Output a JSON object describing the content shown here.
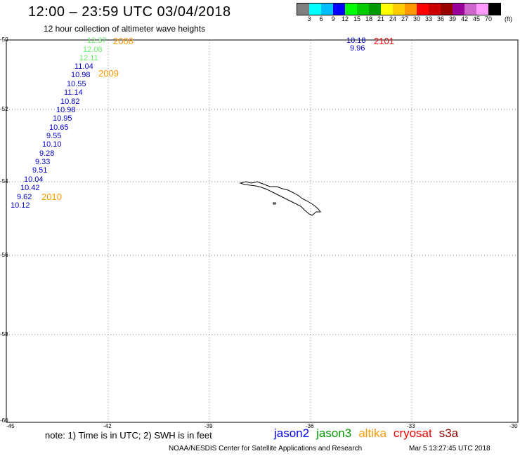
{
  "title": "12:00 – 23:59 UTC 03/04/2018",
  "subtitle": "12 hour collection of altimeter wave heights",
  "legend": {
    "colors": [
      "#808080",
      "#00ffff",
      "#00bfff",
      "#0000ff",
      "#00ff00",
      "#00cc00",
      "#009900",
      "#ffff00",
      "#ffcc00",
      "#ff9900",
      "#ff0000",
      "#cc0000",
      "#990000",
      "#990099",
      "#cc66cc",
      "#ff99ff",
      "#000000"
    ],
    "labels": [
      "3",
      "6",
      "9",
      "12",
      "15",
      "18",
      "21",
      "24",
      "27",
      "30",
      "33",
      "36",
      "39",
      "42",
      "45",
      "70"
    ],
    "unit": "(ft)"
  },
  "axes": {
    "lat_ticks": [
      "-50",
      "-52",
      "-54",
      "-56",
      "-58",
      "-60"
    ],
    "lon_ticks": [
      "-45",
      "-42",
      "-39",
      "-36",
      "-33",
      "-30"
    ]
  },
  "tracks": [
    {
      "time_label": "2008",
      "satellite": "altika",
      "values": [
        {
          "text": "12.37",
          "color": "#66ee66"
        },
        {
          "text": "12.08",
          "color": "#66ee66"
        },
        {
          "text": "12.11",
          "color": "#66ee66"
        }
      ]
    },
    {
      "time_label": "2009",
      "satellite": "jason2",
      "values": [
        {
          "text": "11.04",
          "color": "#0000cc"
        },
        {
          "text": "10.98",
          "color": "#0000cc"
        },
        {
          "text": "10.55",
          "color": "#0000cc"
        },
        {
          "text": "11.14",
          "color": "#0000cc"
        },
        {
          "text": "10.82",
          "color": "#0000cc"
        },
        {
          "text": "10.98",
          "color": "#0000cc"
        },
        {
          "text": "10.95",
          "color": "#0000cc"
        },
        {
          "text": "10.65",
          "color": "#0000cc"
        },
        {
          "text": "9.55",
          "color": "#0000cc"
        },
        {
          "text": "10.10",
          "color": "#0000cc"
        },
        {
          "text": "9.28",
          "color": "#0000cc"
        },
        {
          "text": "9.33",
          "color": "#0000cc"
        },
        {
          "text": "9.51",
          "color": "#0000cc"
        },
        {
          "text": "10.04",
          "color": "#0000cc"
        },
        {
          "text": "10.42",
          "color": "#0000cc"
        },
        {
          "text": "9.62",
          "color": "#0000cc"
        },
        {
          "text": "10.12",
          "color": "#0000cc"
        }
      ]
    },
    {
      "time_label": "2010"
    },
    {
      "time_label": "2101",
      "values": [
        {
          "text": "10.18",
          "color": "#0000cc"
        },
        {
          "text": "9.96",
          "color": "#0000cc"
        }
      ]
    }
  ],
  "time_label_colors": {
    "2008": "#ff9900",
    "2009": "#ff9900",
    "2010": "#ff9900",
    "2101": "#ff0000"
  },
  "note": "note: 1) Time is in UTC; 2) SWH is in feet",
  "satellites": [
    {
      "name": "jason2",
      "color": "#0000ff"
    },
    {
      "name": "jason3",
      "color": "#009900"
    },
    {
      "name": "altika",
      "color": "#ff9900"
    },
    {
      "name": "cryosat",
      "color": "#ff0000"
    },
    {
      "name": "s3a",
      "color": "#990000"
    }
  ],
  "credit": "NOAA/NESDIS Center for Satellite Applications and Research",
  "generated": "Mar  5 13:27:45 UTC 2018"
}
